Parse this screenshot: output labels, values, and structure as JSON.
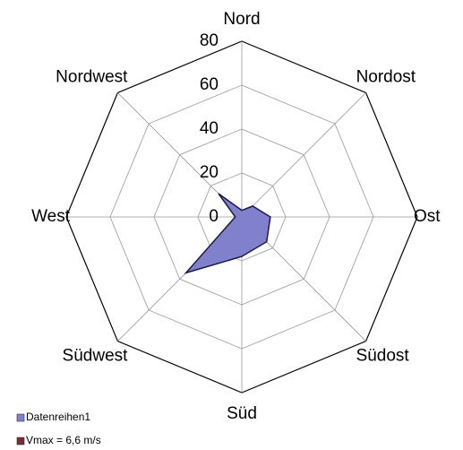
{
  "chart_data": {
    "type": "radar",
    "categories": [
      "Nord",
      "Nordost",
      "Ost",
      "Südost",
      "Süd",
      "Südwest",
      "West",
      "Nordwest"
    ],
    "series": [
      {
        "name": "Datenreihen1",
        "color": "#8080cc",
        "values": [
          3,
          7,
          13,
          16,
          18,
          36,
          3,
          15
        ]
      },
      {
        "name": "Vmax = 6,6 m/s",
        "color": "#7a2a3a",
        "values": [
          null,
          null,
          null,
          null,
          null,
          null,
          null,
          null
        ]
      }
    ],
    "ylim": [
      0,
      80
    ],
    "yticks": [
      0,
      20,
      40,
      60,
      80
    ],
    "grid": true
  }
}
